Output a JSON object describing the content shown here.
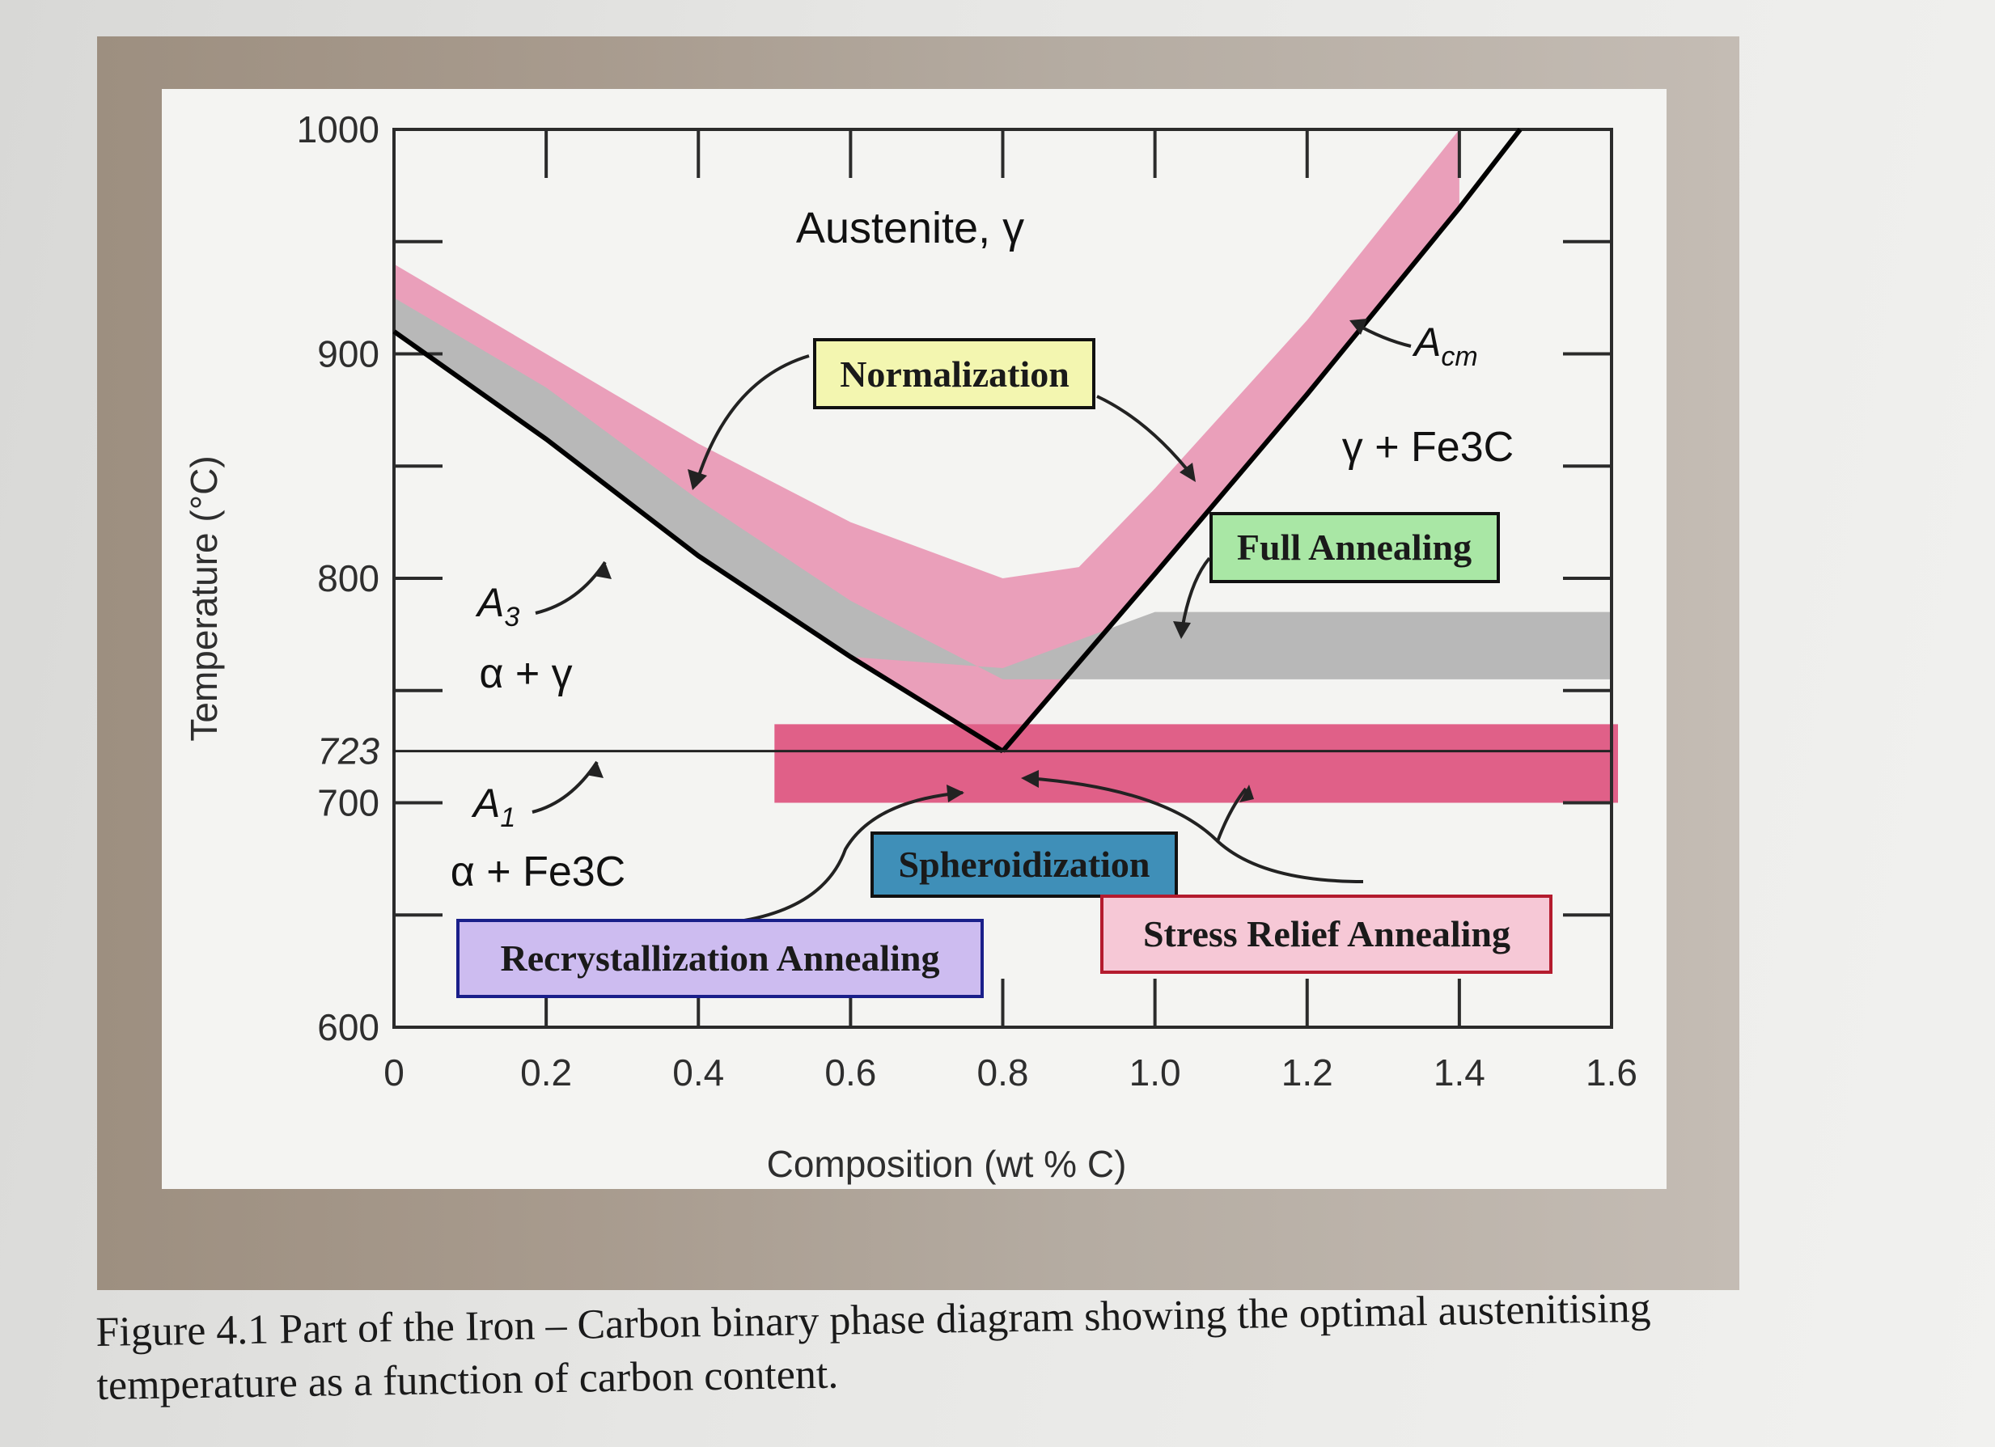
{
  "figure": {
    "caption": "Figure 4.1 Part of the Iron – Carbon binary phase diagram showing the optimal austenitising temperature as a function of carbon content."
  },
  "chart_data": {
    "type": "diagram",
    "xlabel": "Composition (wt % C)",
    "ylabel": "Temperature (°C)",
    "xlim": [
      0,
      1.6
    ],
    "ylim": [
      600,
      1000
    ],
    "x_ticks": [
      "0",
      "0.2",
      "0.4",
      "0.6",
      "0.8",
      "1.0",
      "1.2",
      "1.4",
      "1.6"
    ],
    "y_ticks": [
      "1000",
      "900",
      "800",
      "723",
      "700",
      "600"
    ],
    "eutectoid": {
      "x": 0.8,
      "y": 723
    },
    "lines": {
      "A3": [
        [
          0,
          910
        ],
        [
          0.2,
          862
        ],
        [
          0.4,
          810
        ],
        [
          0.6,
          765
        ],
        [
          0.8,
          723
        ]
      ],
      "Acm": [
        [
          0.8,
          723
        ],
        [
          1.0,
          802
        ],
        [
          1.2,
          882
        ],
        [
          1.4,
          965
        ],
        [
          1.48,
          1000
        ]
      ],
      "A1": [
        [
          0,
          723
        ],
        [
          1.6,
          723
        ]
      ]
    },
    "regions": {
      "austenite": "Austenite, γ",
      "alpha_gamma": "α + γ",
      "alpha_fe3c": "α + Fe3C",
      "gamma_fe3c": "γ + Fe3C"
    },
    "line_labels": {
      "a3": "A",
      "a3_sub": "3",
      "a1": "A",
      "a1_sub": "1",
      "acm": "A",
      "acm_sub": "cm"
    },
    "treatments": {
      "normalization": {
        "label": "Normalization",
        "color": "#e88fb0",
        "band": [
          [
            0,
            940
          ],
          [
            0.2,
            900
          ],
          [
            0.4,
            860
          ],
          [
            0.6,
            825
          ],
          [
            0.8,
            800
          ],
          [
            0.9,
            805
          ],
          [
            1.0,
            840
          ],
          [
            1.2,
            915
          ],
          [
            1.4,
            1000
          ]
        ]
      },
      "full_annealing": {
        "label": "Full Annealing",
        "color": "#b8b8b8",
        "band": [
          [
            0,
            925
          ],
          [
            0.2,
            885
          ],
          [
            0.4,
            835
          ],
          [
            0.6,
            790
          ],
          [
            0.8,
            755
          ],
          [
            1.6,
            755
          ]
        ]
      },
      "spheroidization": {
        "label": "Spheroidization",
        "color": "#e06088",
        "band": [
          [
            0.5,
            700
          ],
          [
            1.6,
            735
          ]
        ]
      },
      "recrystallization_annealing": {
        "label": "Recrystallization Annealing"
      },
      "stress_relief_annealing": {
        "label": "Stress Relief Annealing"
      }
    },
    "box_colors": {
      "normalization": "#f3f6b0",
      "full_annealing": "#a9e7a5",
      "spheroidization": "#3f8fb8",
      "recrystallization_annealing": "#cdbcf0",
      "stress_relief_annealing": "#f6c8d6"
    }
  }
}
